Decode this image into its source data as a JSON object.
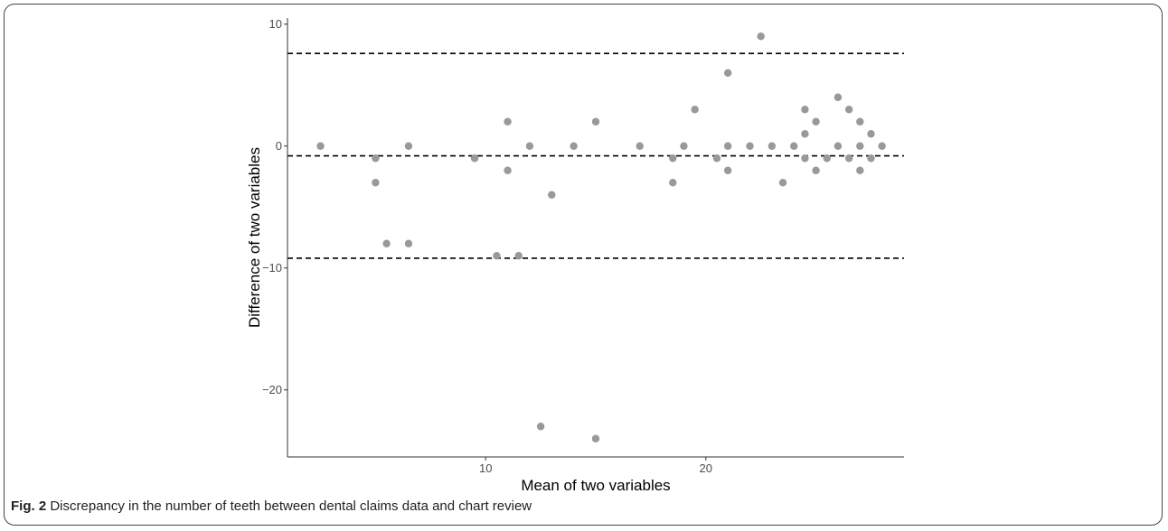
{
  "caption": {
    "label": "Fig. 2",
    "text": "Discrepancy in the number of teeth between dental claims data and chart review"
  },
  "colors": {
    "point": "#999999",
    "line": "#000000",
    "frame": "#444444"
  },
  "chart_data": {
    "type": "scatter",
    "xlabel": "Mean of two variables",
    "ylabel": "Difference of two variables",
    "xlim": [
      1,
      29
    ],
    "ylim": [
      -25.5,
      10.5
    ],
    "xticks": [
      10,
      20
    ],
    "yticks": [
      -20,
      -10,
      0,
      10
    ],
    "grid": false,
    "reference_lines": {
      "upper_limit": 7.6,
      "mean": -0.8,
      "lower_limit": -9.2
    },
    "points": [
      {
        "x": 2.5,
        "y": 0
      },
      {
        "x": 5,
        "y": -1
      },
      {
        "x": 5,
        "y": -3
      },
      {
        "x": 5.5,
        "y": -8
      },
      {
        "x": 6.5,
        "y": 0
      },
      {
        "x": 6.5,
        "y": -8
      },
      {
        "x": 9.5,
        "y": -1
      },
      {
        "x": 10.5,
        "y": -9
      },
      {
        "x": 11,
        "y": 2
      },
      {
        "x": 11,
        "y": -2
      },
      {
        "x": 11.5,
        "y": -9
      },
      {
        "x": 12,
        "y": 0
      },
      {
        "x": 12.5,
        "y": -23
      },
      {
        "x": 13,
        "y": -4
      },
      {
        "x": 14,
        "y": 0
      },
      {
        "x": 15,
        "y": 2
      },
      {
        "x": 15,
        "y": -24
      },
      {
        "x": 17,
        "y": 0
      },
      {
        "x": 18.5,
        "y": -1
      },
      {
        "x": 18.5,
        "y": -3
      },
      {
        "x": 19,
        "y": 0
      },
      {
        "x": 19.5,
        "y": 3
      },
      {
        "x": 20.5,
        "y": -1
      },
      {
        "x": 21,
        "y": 6
      },
      {
        "x": 21,
        "y": 0
      },
      {
        "x": 21,
        "y": -2
      },
      {
        "x": 22,
        "y": 0
      },
      {
        "x": 22.5,
        "y": 9
      },
      {
        "x": 23,
        "y": 0
      },
      {
        "x": 23.5,
        "y": -3
      },
      {
        "x": 24,
        "y": 0
      },
      {
        "x": 24.5,
        "y": 3
      },
      {
        "x": 24.5,
        "y": 1
      },
      {
        "x": 24.5,
        "y": -1
      },
      {
        "x": 25,
        "y": 2
      },
      {
        "x": 25,
        "y": -2
      },
      {
        "x": 25.5,
        "y": -1
      },
      {
        "x": 26,
        "y": 4
      },
      {
        "x": 26,
        "y": 0
      },
      {
        "x": 26.5,
        "y": 3
      },
      {
        "x": 26.5,
        "y": -1
      },
      {
        "x": 27,
        "y": 2
      },
      {
        "x": 27,
        "y": 0
      },
      {
        "x": 27,
        "y": -2
      },
      {
        "x": 27.5,
        "y": 1
      },
      {
        "x": 27.5,
        "y": -1
      },
      {
        "x": 28,
        "y": 0
      }
    ]
  }
}
